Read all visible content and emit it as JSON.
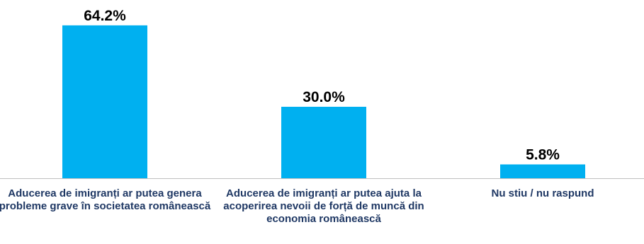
{
  "chart_data": {
    "type": "bar",
    "categories": [
      "Aducerea de imigranți ar putea genera probleme grave în societatea românească",
      "Aducerea de imigranți ar putea ajuta la acoperirea nevoii de forță de muncă din economia românească",
      "Nu stiu / nu raspund"
    ],
    "values": [
      64.2,
      30.0,
      5.8
    ],
    "value_labels": [
      "64.2%",
      "30.0%",
      "5.8%"
    ],
    "title": "",
    "xlabel": "",
    "ylabel": "",
    "ylim": [
      0,
      70
    ],
    "grid": false,
    "legend": "none",
    "bar_color": "#00b0f0",
    "axis_color": "#bfbfbf",
    "label_color": "#1f3864",
    "value_label_color": "#000000"
  }
}
